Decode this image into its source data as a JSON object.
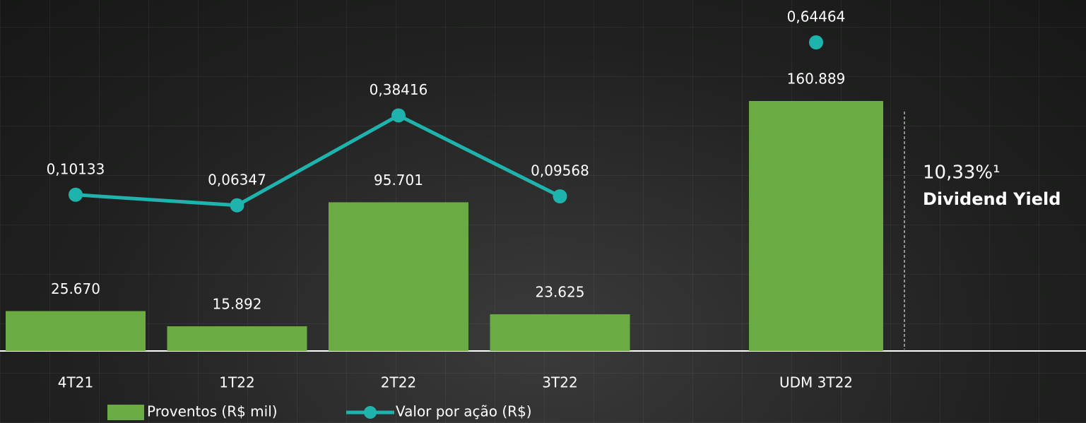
{
  "chart_data": {
    "type": "bar",
    "categories": [
      "4T21",
      "1T22",
      "2T22",
      "3T22",
      "UDM 3T22"
    ],
    "series": [
      {
        "name": "Proventos (R$ mil)",
        "type": "bar",
        "color": "#6aab44",
        "values": [
          25670,
          15892,
          95701,
          23625,
          160889
        ],
        "value_labels": [
          "25.670",
          "15.892",
          "95.701",
          "23.625",
          "160.889"
        ]
      },
      {
        "name": "Valor por ação (R$)",
        "type": "line",
        "axis": "y2",
        "color": "#1fb3ad",
        "values": [
          0.10133,
          0.06347,
          0.38416,
          0.09568,
          0.64464
        ],
        "value_labels": [
          "0,10133",
          "0,06347",
          "0,38416",
          "0,09568",
          "0,64464"
        ]
      }
    ],
    "annotation": "10,33%¹",
    "annotation_subtitle": "Dividend Yield"
  }
}
